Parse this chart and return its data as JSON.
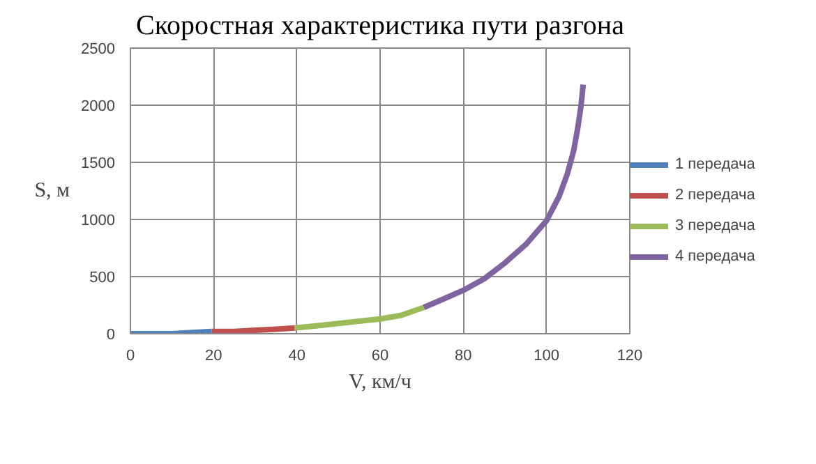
{
  "chart_data": {
    "type": "line",
    "title": "Скоростная характеристика пути разгона",
    "xlabel": "V, км/ч",
    "ylabel": "S, м",
    "xlim": [
      0,
      120
    ],
    "ylim": [
      0,
      2500
    ],
    "xticks": [
      0,
      20,
      40,
      60,
      80,
      100,
      120
    ],
    "yticks": [
      0,
      500,
      1000,
      1500,
      2000,
      2500
    ],
    "grid": true,
    "legend": "right",
    "marker": "none",
    "line_style": "solid",
    "series": [
      {
        "name": "1 передача",
        "color": "#4f81bd",
        "x": [
          0,
          5,
          10,
          15,
          19.5
        ],
        "values": [
          0,
          0,
          0,
          10,
          20
        ]
      },
      {
        "name": "2 передача",
        "color": "#c0504d",
        "x": [
          19.5,
          25,
          30,
          35,
          39.5
        ],
        "values": [
          20,
          20,
          30,
          40,
          50
        ]
      },
      {
        "name": "3 передача",
        "color": "#9bbb59",
        "x": [
          39.5,
          45,
          50,
          55,
          60,
          65,
          70.5
        ],
        "values": [
          50,
          70,
          90,
          110,
          130,
          160,
          230
        ]
      },
      {
        "name": "4 передача",
        "color": "#8064a2",
        "x": [
          70.5,
          75,
          80,
          85,
          90,
          95,
          100,
          103,
          105,
          106.5,
          107.5,
          108.3,
          108.8
        ],
        "values": [
          230,
          300,
          380,
          480,
          620,
          780,
          990,
          1200,
          1400,
          1600,
          1800,
          2000,
          2180
        ]
      }
    ]
  }
}
